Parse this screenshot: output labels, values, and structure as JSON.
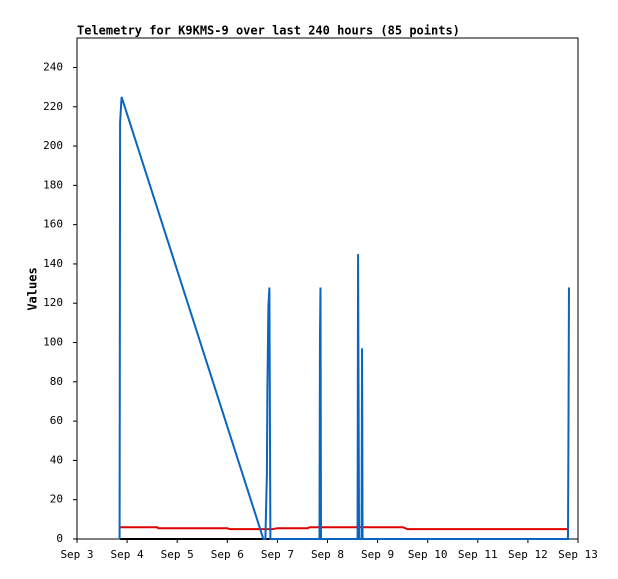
{
  "chart_data": {
    "type": "line",
    "title": "Telemetry for K9KMS-9 over last 240 hours (85 points)",
    "ylabel": "Values",
    "xlim": [
      3,
      13
    ],
    "xticks": [
      {
        "value": 3,
        "label": "Sep 3"
      },
      {
        "value": 4,
        "label": "Sep 4"
      },
      {
        "value": 5,
        "label": "Sep 5"
      },
      {
        "value": 6,
        "label": "Sep 6"
      },
      {
        "value": 7,
        "label": "Sep 7"
      },
      {
        "value": 8,
        "label": "Sep 8"
      },
      {
        "value": 9,
        "label": "Sep 9"
      },
      {
        "value": 10,
        "label": "Sep 10"
      },
      {
        "value": 11,
        "label": "Sep 11"
      },
      {
        "value": 12,
        "label": "Sep 12"
      },
      {
        "value": 13,
        "label": "Sep 13"
      }
    ],
    "ylim": [
      0,
      255
    ],
    "yticks": [
      0,
      20,
      40,
      60,
      80,
      100,
      120,
      140,
      160,
      180,
      200,
      220,
      240
    ],
    "grid": false,
    "series": [
      {
        "color": "#000000",
        "x": [
          3.86,
          12.8
        ],
        "values": [
          0,
          0
        ]
      },
      {
        "color": "#e00000",
        "x": [
          3.86,
          4.6,
          4.62,
          6.0,
          6.05,
          6.9,
          7.0,
          7.6,
          7.65,
          9.5,
          9.55,
          9.6,
          12.8
        ],
        "values": [
          6,
          6,
          5.5,
          5.5,
          5,
          5,
          5.5,
          5.5,
          6,
          6,
          5.5,
          5,
          5
        ]
      },
      {
        "color": "#0a64c0",
        "x": [
          3.85,
          3.86,
          3.89,
          6.72,
          6.76,
          6.79,
          6.8,
          6.81,
          6.82,
          6.84,
          6.86,
          7.84,
          7.85,
          7.86,
          7.87,
          8.6,
          8.61,
          8.62,
          8.63,
          8.68,
          8.69,
          8.7,
          12.8,
          12.81,
          12.82
        ],
        "values": [
          0,
          212,
          225,
          0,
          0,
          33,
          75,
          97,
          118,
          128,
          0,
          0,
          104,
          128,
          0,
          0,
          145,
          73,
          0,
          0,
          97,
          0,
          0,
          57,
          128
        ]
      }
    ]
  }
}
